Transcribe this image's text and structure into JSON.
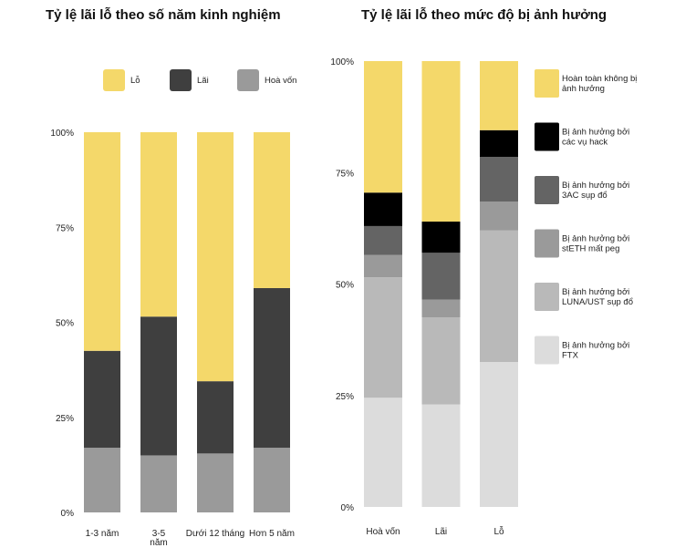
{
  "chart_data": [
    {
      "type": "bar",
      "stacked": true,
      "title": "Tỷ lệ lãi lỗ theo số năm kinh nghiệm",
      "yticks": [
        "100%",
        "75%",
        "50%",
        "25%",
        "0%"
      ],
      "categories": [
        [
          "1-3 năm"
        ],
        [
          "3-5",
          "năm"
        ],
        [
          "Dưới 12 tháng"
        ],
        [
          "Hơn 5 năm"
        ]
      ],
      "ylim": [
        0,
        100
      ],
      "legend_position": "top",
      "series": [
        {
          "name": "Hoà vốn",
          "color": "#9a9a9a",
          "values": [
            17,
            15,
            15.5,
            17
          ]
        },
        {
          "name": "Lãi",
          "color": "#3f3f3f",
          "values": [
            25.5,
            36.5,
            19,
            42
          ]
        },
        {
          "name": "Lỗ",
          "color": "#f4d86a",
          "values": [
            57.5,
            48.5,
            65.5,
            41
          ]
        }
      ],
      "legend_order": [
        2,
        1,
        0
      ]
    },
    {
      "type": "bar",
      "stacked": true,
      "title": "Tỷ lệ lãi lỗ theo mức độ bị ảnh hưởng",
      "yticks": [
        "100%",
        "75%",
        "50%",
        "25%",
        "0%"
      ],
      "categories": [
        [
          "Hoà vốn"
        ],
        [
          "Lãi"
        ],
        [
          "Lỗ"
        ]
      ],
      "ylim": [
        0,
        100
      ],
      "legend_position": "right",
      "series": [
        {
          "name": "Bị ảnh hưởng bởi FTX",
          "color": "#dcdcdc",
          "values": [
            24.5,
            23,
            32.5
          ]
        },
        {
          "name": "Bị ảnh hưởng bởi LUNA/UST sụp đổ",
          "color": "#b9b9b9",
          "values": [
            27,
            19.5,
            29.5
          ]
        },
        {
          "name": "Bị ảnh hưởng bởi stETH mất peg",
          "color": "#9a9a9a",
          "values": [
            5,
            4,
            6.5
          ]
        },
        {
          "name": "Bị ảnh hưởng bởi 3AC sụp đổ",
          "color": "#646464",
          "values": [
            6.5,
            10.5,
            10
          ]
        },
        {
          "name": "Bị ảnh hưởng bởi các vụ hack",
          "color": "#000000",
          "values": [
            7.5,
            7,
            6
          ]
        },
        {
          "name": "Hoàn toàn không bị ảnh hưởng",
          "color": "#f4d86a",
          "values": [
            29.5,
            36,
            15.5
          ]
        }
      ],
      "legend_items": [
        {
          "lines": [
            "Hoàn toàn không bị",
            "ảnh hưởng"
          ],
          "color": "#f4d86a"
        },
        {
          "lines": [
            "Bị ảnh hưởng bởi",
            "các vụ hack"
          ],
          "color": "#000000"
        },
        {
          "lines": [
            "Bị ảnh hưởng bởi",
            "3AC sụp đổ"
          ],
          "color": "#646464"
        },
        {
          "lines": [
            "Bị ảnh hưởng bởi",
            "stETH mất peg"
          ],
          "color": "#9a9a9a"
        },
        {
          "lines": [
            "Bị ảnh hưởng bởi",
            "LUNA/UST sụp đổ"
          ],
          "color": "#b9b9b9"
        },
        {
          "lines": [
            "Bị ảnh hưởng bởi",
            "FTX"
          ],
          "color": "#dcdcdc"
        }
      ]
    }
  ]
}
